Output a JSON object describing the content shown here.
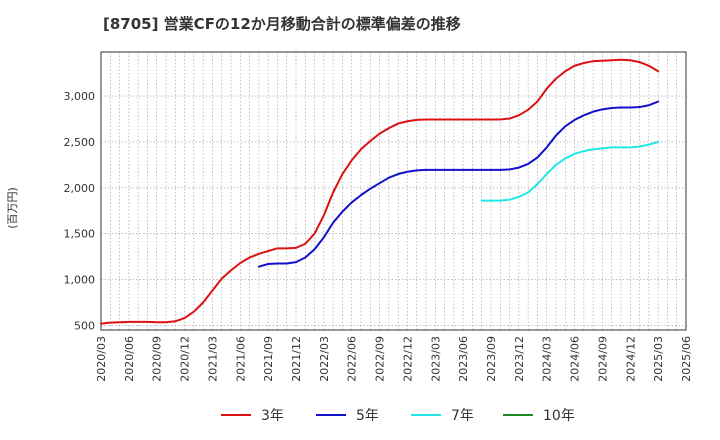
{
  "chart_data": {
    "type": "line",
    "title": "[8705]  営業CFの12か月移動合計の標準偏差の推移",
    "ylabel": "(百万円)",
    "xlabel": "",
    "ylim": [
      450,
      3480
    ],
    "yticks": [
      500,
      1000,
      1500,
      2000,
      2500,
      3000
    ],
    "ytick_labels": [
      "500",
      "1,000",
      "1,500",
      "2,000",
      "2,500",
      "3,000"
    ],
    "xticks": [
      "2020/03",
      "2020/06",
      "2020/09",
      "2020/12",
      "2021/03",
      "2021/06",
      "2021/09",
      "2021/12",
      "2022/03",
      "2022/06",
      "2022/09",
      "2022/12",
      "2023/03",
      "2023/06",
      "2023/09",
      "2023/12",
      "2024/03",
      "2024/06",
      "2024/09",
      "2024/12",
      "2025/03",
      "2025/06"
    ],
    "grid": true,
    "legend_position": "bottom",
    "series": [
      {
        "name": "3年",
        "color": "#dd1111",
        "x": [
          "2020/03",
          "2020/04",
          "2020/05",
          "2020/06",
          "2020/07",
          "2020/08",
          "2020/09",
          "2020/10",
          "2020/11",
          "2020/12",
          "2021/01",
          "2021/02",
          "2021/03",
          "2021/04",
          "2021/05",
          "2021/06",
          "2021/07",
          "2021/08",
          "2021/09",
          "2021/10",
          "2021/11",
          "2021/12",
          "2022/01",
          "2022/02",
          "2022/03",
          "2022/04",
          "2022/05",
          "2022/06",
          "2022/07",
          "2022/08",
          "2022/09",
          "2022/10",
          "2022/11",
          "2022/12",
          "2023/01",
          "2023/02",
          "2023/03",
          "2023/04",
          "2023/05",
          "2023/06",
          "2023/07",
          "2023/08",
          "2023/09",
          "2023/10",
          "2023/11",
          "2023/12",
          "2024/01",
          "2024/02",
          "2024/03",
          "2024/04",
          "2024/05",
          "2024/06",
          "2024/07",
          "2024/08",
          "2024/09",
          "2024/10",
          "2024/11",
          "2024/12",
          "2025/01",
          "2025/02",
          "2025/03"
        ],
        "values": [
          520,
          530,
          535,
          538,
          538,
          538,
          535,
          535,
          545,
          580,
          650,
          750,
          880,
          1010,
          1100,
          1180,
          1240,
          1280,
          1310,
          1340,
          1340,
          1345,
          1390,
          1500,
          1700,
          1950,
          2150,
          2300,
          2420,
          2510,
          2590,
          2650,
          2700,
          2725,
          2740,
          2745,
          2745,
          2745,
          2745,
          2745,
          2745,
          2745,
          2745,
          2745,
          2755,
          2790,
          2850,
          2940,
          3080,
          3190,
          3270,
          3330,
          3360,
          3380,
          3385,
          3390,
          3395,
          3390,
          3370,
          3330,
          3270
        ]
      },
      {
        "name": "5年",
        "color": "#1111cc",
        "x": [
          "2021/08",
          "2021/09",
          "2021/10",
          "2021/11",
          "2021/12",
          "2022/01",
          "2022/02",
          "2022/03",
          "2022/04",
          "2022/05",
          "2022/06",
          "2022/07",
          "2022/08",
          "2022/09",
          "2022/10",
          "2022/11",
          "2022/12",
          "2023/01",
          "2023/02",
          "2023/03",
          "2023/04",
          "2023/05",
          "2023/06",
          "2023/07",
          "2023/08",
          "2023/09",
          "2023/10",
          "2023/11",
          "2023/12",
          "2024/01",
          "2024/02",
          "2024/03",
          "2024/04",
          "2024/05",
          "2024/06",
          "2024/07",
          "2024/08",
          "2024/09",
          "2024/10",
          "2024/11",
          "2024/12",
          "2025/01",
          "2025/02",
          "2025/03"
        ],
        "values": [
          1140,
          1170,
          1175,
          1175,
          1190,
          1240,
          1330,
          1460,
          1620,
          1740,
          1840,
          1920,
          1990,
          2050,
          2110,
          2150,
          2175,
          2190,
          2195,
          2195,
          2195,
          2195,
          2195,
          2195,
          2195,
          2195,
          2195,
          2200,
          2220,
          2260,
          2330,
          2440,
          2570,
          2670,
          2740,
          2790,
          2830,
          2855,
          2870,
          2875,
          2875,
          2880,
          2900,
          2940
        ]
      },
      {
        "name": "7年",
        "color": "#22e6e6",
        "x": [
          "2023/08",
          "2023/09",
          "2023/10",
          "2023/11",
          "2023/12",
          "2024/01",
          "2024/02",
          "2024/03",
          "2024/04",
          "2024/05",
          "2024/06",
          "2024/07",
          "2024/08",
          "2024/09",
          "2024/10",
          "2024/11",
          "2024/12",
          "2025/01",
          "2025/02",
          "2025/03"
        ],
        "values": [
          1860,
          1860,
          1860,
          1870,
          1900,
          1950,
          2040,
          2150,
          2250,
          2320,
          2370,
          2400,
          2420,
          2430,
          2440,
          2440,
          2440,
          2450,
          2470,
          2500
        ]
      },
      {
        "name": "10年",
        "color": "#228822",
        "x": [],
        "values": []
      }
    ]
  }
}
